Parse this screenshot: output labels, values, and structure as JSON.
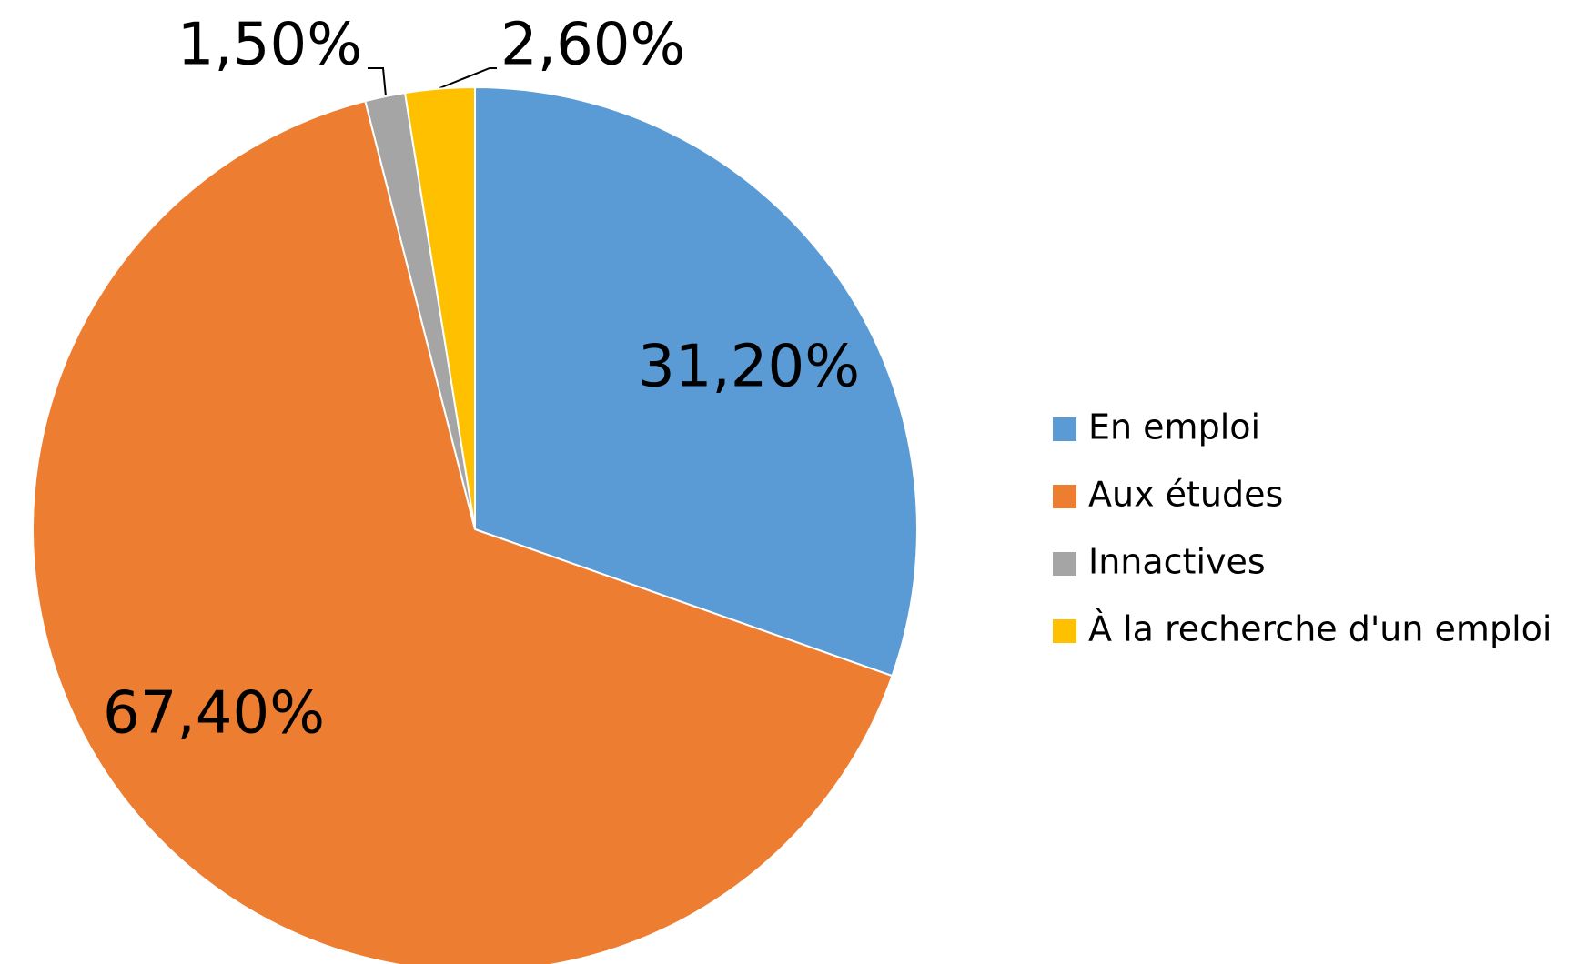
{
  "chart_data": {
    "type": "pie",
    "categories": [
      "En emploi",
      "Aux études",
      "Innactives",
      "À la recherche d'un emploi"
    ],
    "values": [
      31.2,
      67.4,
      1.5,
      2.6
    ],
    "value_labels": [
      "31,20%",
      "67,40%",
      "1,50%",
      "2,60%"
    ],
    "colors": [
      "#5b9bd5",
      "#ed7d31",
      "#a5a5a5",
      "#ffc000"
    ],
    "legend": "right"
  }
}
